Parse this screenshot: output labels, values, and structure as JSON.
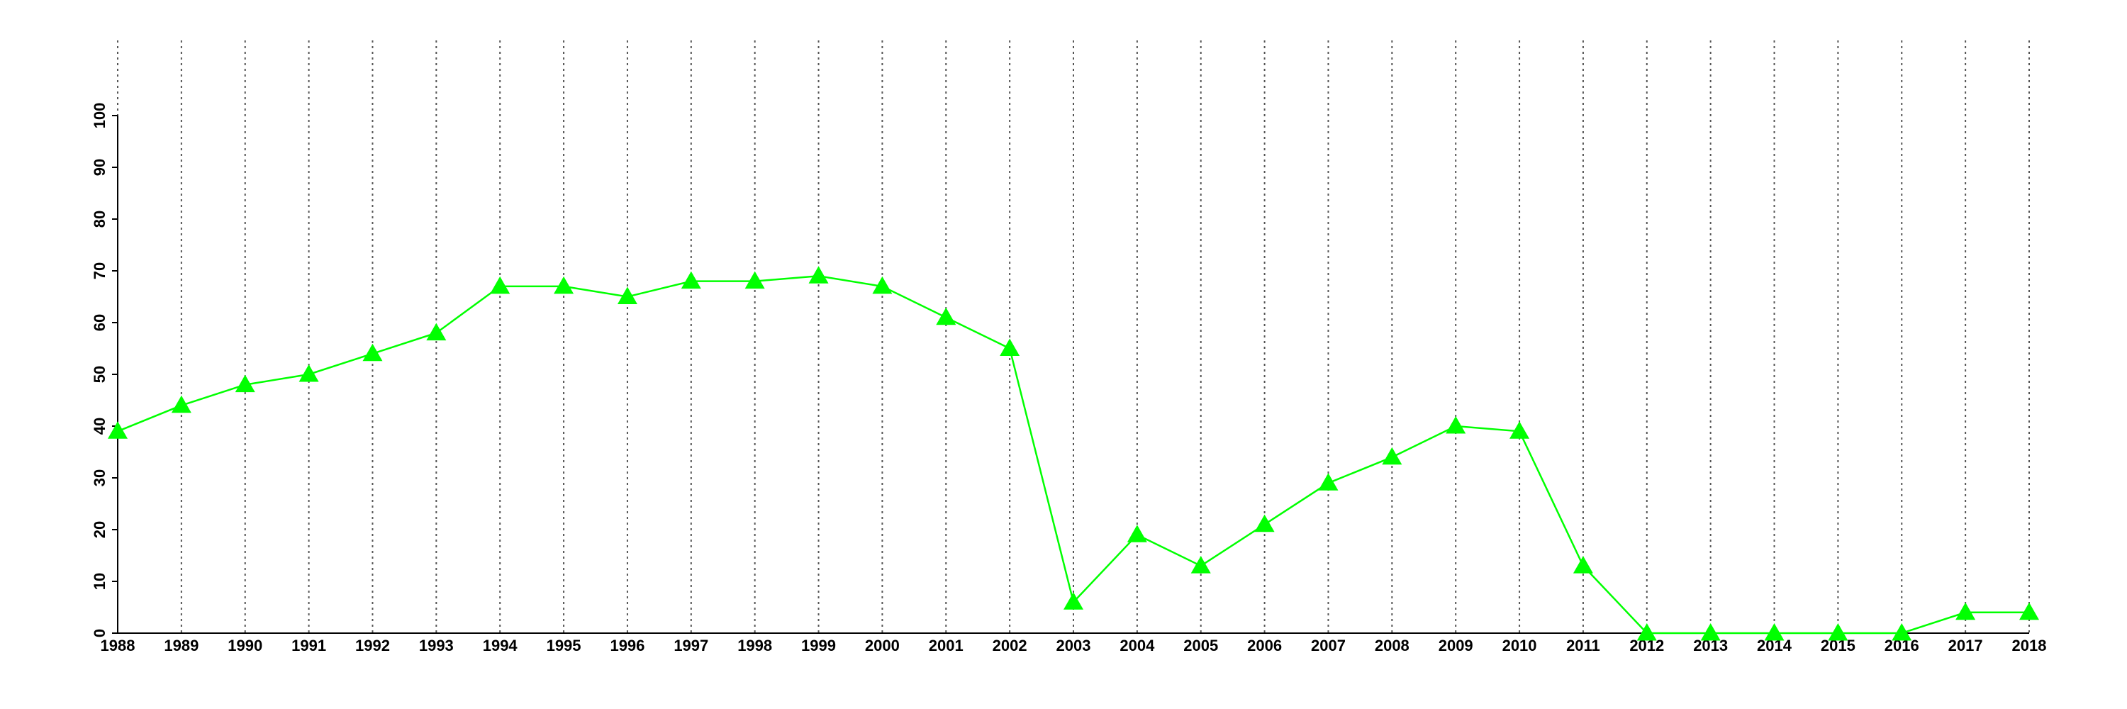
{
  "chart_data": {
    "type": "line",
    "x": [
      1988,
      1989,
      1990,
      1991,
      1992,
      1993,
      1994,
      1995,
      1996,
      1997,
      1998,
      1999,
      2000,
      2001,
      2002,
      2003,
      2004,
      2005,
      2006,
      2007,
      2008,
      2009,
      2010,
      2011,
      2012,
      2013,
      2014,
      2015,
      2016,
      2017,
      2018
    ],
    "values": [
      39,
      44,
      48,
      50,
      54,
      58,
      67,
      67,
      65,
      68,
      68,
      69,
      67,
      61,
      55,
      6,
      19,
      13,
      21,
      29,
      34,
      40,
      39,
      13,
      0,
      0,
      0,
      0,
      0,
      4,
      4
    ],
    "color": "#00ff00",
    "marker": "triangle",
    "xlim": [
      1988,
      2018
    ],
    "xticks": [
      1988,
      1989,
      1990,
      1991,
      1992,
      1993,
      1994,
      1995,
      1996,
      1997,
      1998,
      1999,
      2000,
      2001,
      2002,
      2003,
      2004,
      2005,
      2006,
      2007,
      2008,
      2009,
      2010,
      2011,
      2012,
      2013,
      2014,
      2015,
      2016,
      2017,
      2018
    ],
    "ylim": [
      0,
      100
    ],
    "yticks": [
      0,
      10,
      20,
      30,
      40,
      50,
      60,
      70,
      80,
      90,
      100
    ],
    "grid": true
  }
}
